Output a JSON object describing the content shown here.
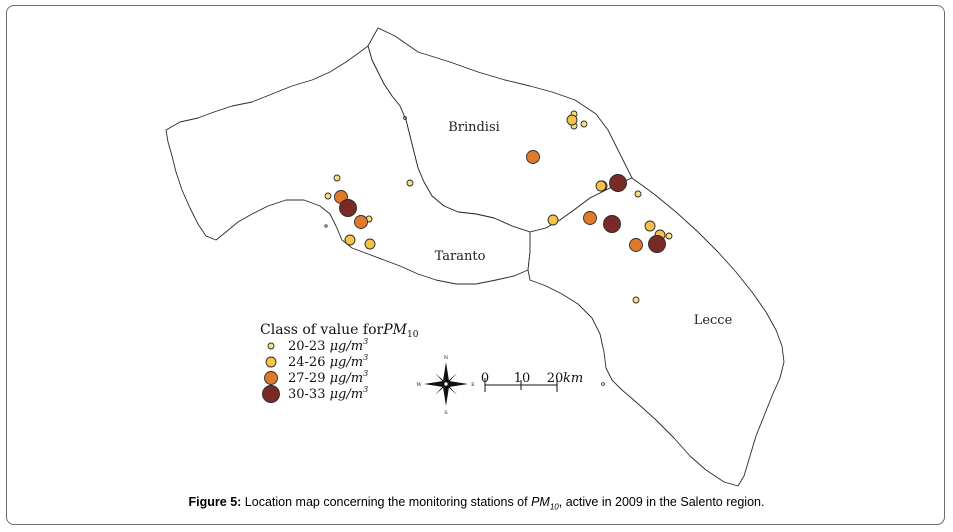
{
  "regions": [
    {
      "name": "Brindisi"
    },
    {
      "name": "Taranto"
    },
    {
      "name": "Lecce"
    }
  ],
  "legend": {
    "title_prefix": "Class of value for",
    "title_var": "PM",
    "title_sub": "10",
    "unit_main": "μg/m",
    "unit_sup": "3",
    "classes": [
      {
        "range": "20-23",
        "color": "#f7e27a"
      },
      {
        "range": "24-26",
        "color": "#f4c14a"
      },
      {
        "range": "27-29",
        "color": "#de7a2c"
      },
      {
        "range": "30-33",
        "color": "#7a2a26"
      }
    ]
  },
  "scale_bar": {
    "ticks": [
      "0",
      "10",
      "20"
    ],
    "unit": "km"
  },
  "compass": {
    "n": "N",
    "s": "S",
    "e": "E",
    "w": "W"
  },
  "stations": [
    {
      "class": 0
    },
    {
      "class": 0
    },
    {
      "class": 0
    },
    {
      "class": 1
    },
    {
      "class": 2
    },
    {
      "class": 0
    },
    {
      "class": 0
    },
    {
      "class": 1
    },
    {
      "class": 3
    },
    {
      "class": 0
    },
    {
      "class": 1
    },
    {
      "class": 1
    },
    {
      "class": 2
    },
    {
      "class": 0
    },
    {
      "class": 0
    },
    {
      "class": 2
    },
    {
      "class": 3
    },
    {
      "class": 2
    },
    {
      "class": 3
    },
    {
      "class": 1
    },
    {
      "class": 1
    },
    {
      "class": 0
    },
    {
      "class": 2
    },
    {
      "class": 3
    },
    {
      "class": 1
    },
    {
      "class": 1
    },
    {
      "class": 0
    }
  ],
  "caption": {
    "label": "Figure 5:",
    "text_before": " Location map concerning the monitoring stations of ",
    "var": "PM",
    "sub": "10",
    "text_after": ", active in 2009 in the Salento region."
  }
}
